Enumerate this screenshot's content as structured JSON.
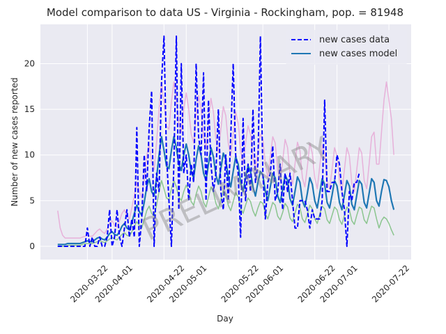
{
  "chart_data": {
    "type": "line",
    "title": "Model comparison to data US - Virginia - Rockingham, pop. = 81948",
    "x_label": "Day",
    "y_label": "Number of new cases reported",
    "watermark": "PRELIMINARY",
    "grid": true,
    "legend": "upper right",
    "x": [
      "2020-03-10",
      "2020-03-11",
      "2020-03-12",
      "2020-03-13",
      "2020-03-14",
      "2020-03-15",
      "2020-03-16",
      "2020-03-17",
      "2020-03-18",
      "2020-03-19",
      "2020-03-20",
      "2020-03-21",
      "2020-03-22",
      "2020-03-23",
      "2020-03-24",
      "2020-03-25",
      "2020-03-26",
      "2020-03-27",
      "2020-03-28",
      "2020-03-29",
      "2020-03-30",
      "2020-03-31",
      "2020-04-01",
      "2020-04-02",
      "2020-04-03",
      "2020-04-04",
      "2020-04-05",
      "2020-04-06",
      "2020-04-07",
      "2020-04-08",
      "2020-04-09",
      "2020-04-10",
      "2020-04-11",
      "2020-04-12",
      "2020-04-13",
      "2020-04-14",
      "2020-04-15",
      "2020-04-16",
      "2020-04-17",
      "2020-04-18",
      "2020-04-19",
      "2020-04-20",
      "2020-04-21",
      "2020-04-22",
      "2020-04-23",
      "2020-04-24",
      "2020-04-25",
      "2020-04-26",
      "2020-04-27",
      "2020-04-28",
      "2020-04-29",
      "2020-04-30",
      "2020-05-01",
      "2020-05-02",
      "2020-05-03",
      "2020-05-04",
      "2020-05-05",
      "2020-05-06",
      "2020-05-07",
      "2020-05-08",
      "2020-05-09",
      "2020-05-10",
      "2020-05-11",
      "2020-05-12",
      "2020-05-13",
      "2020-05-14",
      "2020-05-15",
      "2020-05-16",
      "2020-05-17",
      "2020-05-18",
      "2020-05-19",
      "2020-05-20",
      "2020-05-21",
      "2020-05-22",
      "2020-05-23",
      "2020-05-24",
      "2020-05-25",
      "2020-05-26",
      "2020-05-27",
      "2020-05-28",
      "2020-05-29",
      "2020-05-30",
      "2020-05-31",
      "2020-06-01",
      "2020-06-02",
      "2020-06-03",
      "2020-06-04",
      "2020-06-05",
      "2020-06-06",
      "2020-06-07",
      "2020-06-08",
      "2020-06-09",
      "2020-06-10",
      "2020-06-11",
      "2020-06-12",
      "2020-06-13",
      "2020-06-14",
      "2020-06-15",
      "2020-06-16",
      "2020-06-17",
      "2020-06-18",
      "2020-06-19",
      "2020-06-20",
      "2020-06-21",
      "2020-06-22",
      "2020-06-23",
      "2020-06-24",
      "2020-06-25",
      "2020-06-26",
      "2020-06-27",
      "2020-06-28",
      "2020-06-29",
      "2020-06-30",
      "2020-07-01",
      "2020-07-02",
      "2020-07-03",
      "2020-07-04",
      "2020-07-05",
      "2020-07-06",
      "2020-07-07",
      "2020-07-08",
      "2020-07-09",
      "2020-07-10",
      "2020-07-11",
      "2020-07-12",
      "2020-07-13",
      "2020-07-14",
      "2020-07-15",
      "2020-07-16",
      "2020-07-17",
      "2020-07-18",
      "2020-07-19",
      "2020-07-20",
      "2020-07-21",
      "2020-07-22",
      "2020-07-23",
      "2020-07-24"
    ],
    "xlim": [
      "2020-03-03",
      "2020-07-31"
    ],
    "xticks": [
      "2020-03-22",
      "2020-04-01",
      "2020-04-22",
      "2020-05-01",
      "2020-05-22",
      "2020-06-01",
      "2020-06-22",
      "2020-07-01",
      "2020-07-22"
    ],
    "ylim": [
      -1.45,
      24.3
    ],
    "yticks": [
      0,
      5,
      10,
      15,
      20
    ],
    "ensemble": [
      {
        "color": "#e377c2",
        "values": [
          3.9,
          2.0,
          1.2,
          0.9,
          0.9,
          0.9,
          0.9,
          0.9,
          0.9,
          0.9,
          1.0,
          1.1,
          1.2,
          1.1,
          1.1,
          1.4,
          1.7,
          1.9,
          1.6,
          1.4,
          1.9,
          2.5,
          2.8,
          2.3,
          2.1,
          2.8,
          3.6,
          4.0,
          3.3,
          3.0,
          4.2,
          5.6,
          7.0,
          6.0,
          5.3,
          7.4,
          9.9,
          11.2,
          9.2,
          8.4,
          11.4,
          15.0,
          18.0,
          15.8,
          13.2,
          12.8,
          15.8,
          18.0,
          16.2,
          13.5,
          12.5,
          15.0,
          16.8,
          15.0,
          12.3,
          11.3,
          14.3,
          16.5,
          15.0,
          12.0,
          10.8,
          13.5,
          16.2,
          14.7,
          11.7,
          10.2,
          12.8,
          15.3,
          14.3,
          11.3,
          9.8,
          12.3,
          14.7,
          13.5,
          10.5,
          9.0,
          11.3,
          13.2,
          12.3,
          9.8,
          8.3,
          10.5,
          12.3,
          11.7,
          9.0,
          7.5,
          9.8,
          12.0,
          11.3,
          8.3,
          7.2,
          9.3,
          11.7,
          10.8,
          7.8,
          6.8,
          9.0,
          11.4,
          10.5,
          7.5,
          6.5,
          8.7,
          11.3,
          10.2,
          7.5,
          6.3,
          8.7,
          11.1,
          10.2,
          7.2,
          6.3,
          8.4,
          10.8,
          9.9,
          7.2,
          6.0,
          8.4,
          10.8,
          9.9,
          6.9,
          6.0,
          8.4,
          10.8,
          10.2,
          7.2,
          6.3,
          9.0,
          12.0,
          12.5,
          9.0,
          9.0,
          12.5,
          16.0,
          18.0,
          16.0,
          14.0,
          10.0
        ]
      },
      {
        "color": "#2ca02c",
        "values": [
          0,
          0,
          0,
          0,
          0.1,
          0.1,
          0.1,
          0.1,
          0.1,
          0.1,
          0.2,
          0.3,
          0.3,
          0.3,
          0.3,
          0.4,
          0.5,
          0.6,
          0.5,
          0.4,
          0.6,
          0.8,
          1.0,
          0.8,
          0.7,
          1.0,
          1.3,
          1.5,
          1.2,
          1.1,
          1.6,
          2.2,
          2.7,
          2.3,
          2.0,
          2.9,
          3.9,
          4.4,
          3.6,
          3.3,
          4.5,
          6.0,
          7.2,
          6.3,
          5.3,
          5.1,
          6.3,
          7.2,
          6.5,
          5.4,
          5.0,
          6.0,
          6.7,
          6.0,
          4.9,
          4.5,
          5.7,
          6.6,
          6.0,
          4.8,
          4.3,
          5.4,
          6.5,
          5.9,
          4.7,
          4.1,
          5.1,
          6.1,
          5.7,
          4.5,
          3.9,
          4.9,
          5.9,
          5.4,
          4.2,
          3.6,
          4.5,
          5.3,
          4.9,
          3.9,
          3.3,
          4.2,
          4.9,
          4.7,
          3.6,
          3.0,
          3.9,
          4.8,
          4.5,
          3.3,
          2.9,
          3.7,
          4.7,
          4.3,
          3.1,
          2.7,
          3.6,
          4.6,
          4.2,
          3.0,
          2.6,
          3.5,
          4.5,
          4.1,
          3.0,
          2.5,
          3.5,
          4.4,
          4.1,
          2.9,
          2.5,
          3.4,
          4.3,
          4.0,
          2.9,
          2.4,
          3.4,
          4.3,
          4.0,
          2.8,
          2.4,
          3.4,
          4.3,
          4.1,
          2.9,
          2.5,
          3.5,
          4.4,
          4.2,
          3.0,
          2.0,
          2.8,
          3.2,
          3.0,
          2.5,
          1.8,
          1.2
        ]
      }
    ],
    "series": [
      {
        "name": "new cases data",
        "color": "#0000ff",
        "linestyle": "dashed",
        "values": [
          0,
          0,
          0,
          0,
          0,
          0,
          0,
          0,
          0,
          0,
          0,
          0,
          2,
          0,
          1,
          0,
          0,
          1,
          0,
          0,
          1,
          4,
          0,
          1,
          4,
          1,
          0,
          2,
          4,
          1,
          3,
          1,
          13,
          0,
          3,
          10,
          6,
          13,
          17,
          0,
          8,
          6,
          18,
          23,
          10,
          5,
          0,
          9,
          23,
          4,
          20,
          8,
          10,
          5,
          9,
          7,
          20,
          12,
          10,
          19,
          5,
          16,
          9,
          6,
          8,
          15,
          6,
          4,
          10,
          5,
          12,
          20,
          10,
          8,
          1,
          14,
          5,
          9,
          6,
          15,
          7,
          9,
          23,
          8,
          3,
          7,
          8,
          11,
          5,
          6,
          9,
          4,
          8,
          6,
          8,
          5,
          2,
          2,
          5,
          5,
          5,
          4,
          2,
          4,
          3,
          3,
          3,
          5,
          16,
          6,
          6,
          7,
          7,
          10,
          9,
          6,
          4,
          0,
          6,
          5,
          7,
          7,
          8,
          null,
          null,
          null,
          null,
          null,
          null,
          null,
          null,
          null,
          null,
          null,
          null,
          null,
          null
        ]
      },
      {
        "name": "new cases model",
        "color": "#1f77b4",
        "linestyle": "solid",
        "values": [
          0.2,
          0.2,
          0.2,
          0.2,
          0.3,
          0.3,
          0.3,
          0.3,
          0.3,
          0.3,
          0.4,
          0.5,
          0.6,
          0.5,
          0.5,
          0.7,
          0.9,
          1.0,
          0.8,
          0.7,
          1.0,
          1.4,
          1.6,
          1.3,
          1.2,
          1.6,
          2.2,
          2.5,
          2.0,
          1.8,
          2.6,
          3.6,
          4.5,
          3.8,
          3.4,
          4.8,
          6.5,
          7.4,
          6.0,
          5.5,
          7.5,
          10.0,
          12.0,
          10.5,
          8.8,
          8.5,
          10.5,
          12.0,
          10.8,
          9.0,
          8.3,
          10.0,
          11.2,
          10.0,
          8.2,
          7.5,
          9.5,
          11.0,
          10.0,
          8.0,
          7.2,
          9.0,
          10.8,
          9.8,
          7.8,
          6.8,
          8.5,
          10.2,
          9.5,
          7.5,
          6.5,
          8.2,
          9.8,
          9.0,
          7.0,
          6.0,
          7.5,
          8.8,
          8.2,
          6.5,
          5.5,
          7.0,
          8.2,
          7.8,
          6.0,
          5.0,
          6.5,
          8.0,
          7.5,
          5.5,
          4.8,
          6.2,
          7.8,
          7.2,
          5.2,
          4.5,
          6.0,
          7.6,
          7.0,
          5.0,
          4.3,
          5.8,
          7.5,
          6.8,
          5.0,
          4.2,
          5.8,
          7.4,
          6.8,
          4.8,
          4.2,
          5.6,
          7.2,
          6.6,
          4.8,
          4.0,
          5.6,
          7.2,
          6.6,
          4.6,
          4.0,
          5.6,
          7.2,
          6.8,
          4.8,
          4.2,
          5.8,
          7.4,
          7.0,
          5.0,
          4.4,
          6.0,
          7.3,
          7.2,
          6.5,
          5.0,
          4.0
        ]
      }
    ]
  }
}
